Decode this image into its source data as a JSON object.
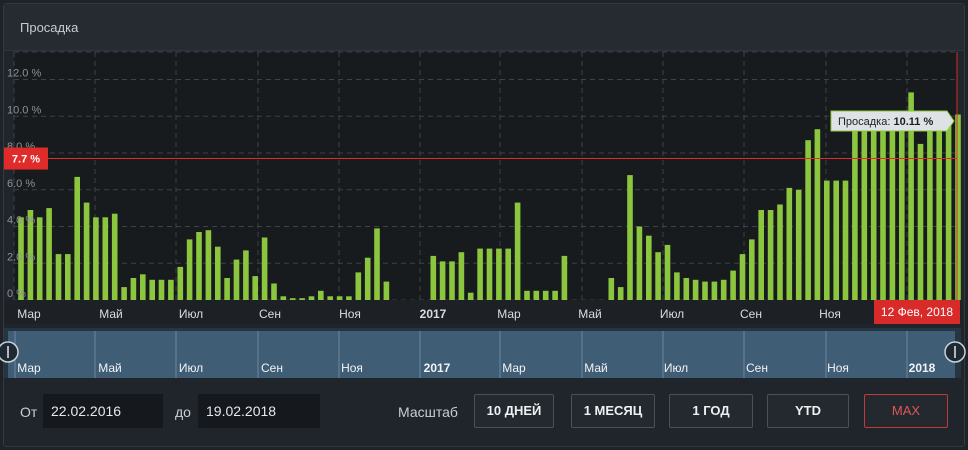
{
  "header": {
    "title": "Просадка"
  },
  "chart_data": {
    "type": "bar",
    "ylabel": "",
    "ylim": [
      0,
      13.5
    ],
    "yticks": [
      {
        "v": 0,
        "label": "0 %"
      },
      {
        "v": 2,
        "label": "2.0 %"
      },
      {
        "v": 4,
        "label": "4.0 %"
      },
      {
        "v": 6,
        "label": "6.0 %"
      },
      {
        "v": 8,
        "label": "8.0 %"
      },
      {
        "v": 10,
        "label": "10.0 %"
      },
      {
        "v": 12,
        "label": "12.0 %"
      }
    ],
    "values": [
      4.5,
      4.9,
      4.5,
      5.0,
      2.5,
      2.5,
      6.7,
      5.3,
      4.5,
      4.5,
      4.7,
      0.7,
      1.2,
      1.4,
      1.1,
      1.1,
      1.1,
      1.8,
      3.3,
      3.7,
      3.8,
      2.9,
      1.2,
      2.2,
      2.7,
      1.3,
      3.4,
      0.9,
      0.2,
      0.1,
      0.1,
      0.2,
      0.5,
      0.2,
      0.2,
      0.2,
      1.5,
      2.3,
      3.9,
      1.0,
      0,
      0,
      0,
      0,
      2.4,
      2.1,
      2.1,
      2.6,
      0.4,
      2.8,
      2.8,
      2.8,
      2.8,
      5.3,
      0.5,
      0.5,
      0.5,
      0.5,
      2.4,
      0,
      0,
      0,
      0,
      1.2,
      0.7,
      6.8,
      4.0,
      3.5,
      2.6,
      3.0,
      1.5,
      1.2,
      1.1,
      1.0,
      1.0,
      1.1,
      1.6,
      2.5,
      3.3,
      4.9,
      4.9,
      5.2,
      6.1,
      6.0,
      8.7,
      9.3,
      6.5,
      6.5,
      6.5,
      10.0,
      10.0,
      10.0,
      10.0,
      10.1,
      10.1,
      11.3,
      8.5,
      9.8,
      9.8,
      9.8,
      10.1
    ],
    "x_labels": [
      "Мар",
      "Май",
      "Июл",
      "Сен",
      "Ноя",
      "2017",
      "Мар",
      "Май",
      "Июл",
      "Сен",
      "Ноя"
    ],
    "colors": {
      "bar": "#8cc63f",
      "line": "#e02b2b",
      "crosshair": "#d92a2a"
    },
    "reference_line": {
      "value": 7.7,
      "label": "7.7 %"
    },
    "crosshair_label": "12 Фев, 2018",
    "tooltip": {
      "label": "Просадка:",
      "value": "10.11 %"
    }
  },
  "navigator": {
    "labels": [
      "Мар",
      "Май",
      "Июл",
      "Сен",
      "Ноя",
      "2017",
      "Мар",
      "Май",
      "Июл",
      "Сен",
      "Ноя",
      "2018"
    ]
  },
  "controls": {
    "from_label": "От",
    "from_value": "22.02.2016",
    "to_label": "до",
    "to_value": "19.02.2018",
    "scale_label": "Масштаб",
    "buttons": [
      "10 ДНЕЙ",
      "1 МЕСЯЦ",
      "1 ГОД",
      "YTD",
      "MAX"
    ]
  }
}
